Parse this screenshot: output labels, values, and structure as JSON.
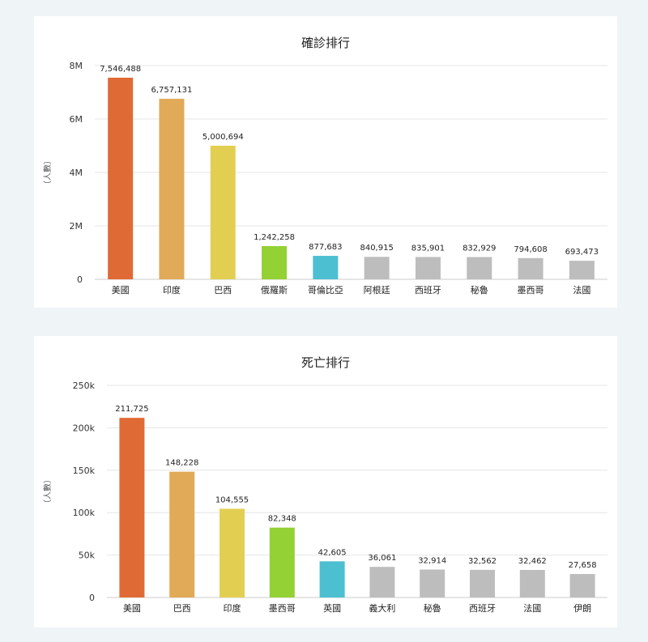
{
  "chart_data": [
    {
      "type": "bar",
      "title": "確診排行",
      "ylabel": "（人數）",
      "ylim": [
        0,
        8000000
      ],
      "yticks": [
        0,
        2000000,
        4000000,
        6000000,
        8000000
      ],
      "ytick_labels": [
        "0",
        "2M",
        "4M",
        "6M",
        "8M"
      ],
      "grid": true,
      "categories": [
        "美國",
        "印度",
        "巴西",
        "俄羅斯",
        "哥倫比亞",
        "阿根廷",
        "西班牙",
        "秘魯",
        "墨西哥",
        "法國"
      ],
      "values": [
        7546488,
        6757131,
        5000694,
        1242258,
        877683,
        840915,
        835901,
        832929,
        794608,
        693473
      ],
      "value_labels": [
        "7,546,488",
        "6,757,131",
        "5,000,694",
        "1,242,258",
        "877,683",
        "840,915",
        "835,901",
        "832,929",
        "794,608",
        "693,473"
      ],
      "colors": [
        "#e06a35",
        "#e0aa58",
        "#e2cf52",
        "#93d134",
        "#4cbfd1",
        "#bdbdbd",
        "#bdbdbd",
        "#bdbdbd",
        "#bdbdbd",
        "#bdbdbd"
      ]
    },
    {
      "type": "bar",
      "title": "死亡排行",
      "ylabel": "（人數）",
      "ylim": [
        0,
        250000
      ],
      "yticks": [
        0,
        50000,
        100000,
        150000,
        200000,
        250000
      ],
      "ytick_labels": [
        "0",
        "50k",
        "100k",
        "150k",
        "200k",
        "250k"
      ],
      "grid": true,
      "categories": [
        "美國",
        "巴西",
        "印度",
        "墨西哥",
        "英國",
        "義大利",
        "秘魯",
        "西班牙",
        "法國",
        "伊朗"
      ],
      "values": [
        211725,
        148228,
        104555,
        82348,
        42605,
        36061,
        32914,
        32562,
        32462,
        27658
      ],
      "value_labels": [
        "211,725",
        "148,228",
        "104,555",
        "82,348",
        "42,605",
        "36,061",
        "32,914",
        "32,562",
        "32,462",
        "27,658"
      ],
      "colors": [
        "#e06a35",
        "#e0aa58",
        "#e2cf52",
        "#93d134",
        "#4cbfd1",
        "#bdbdbd",
        "#bdbdbd",
        "#bdbdbd",
        "#bdbdbd",
        "#bdbdbd"
      ]
    }
  ]
}
